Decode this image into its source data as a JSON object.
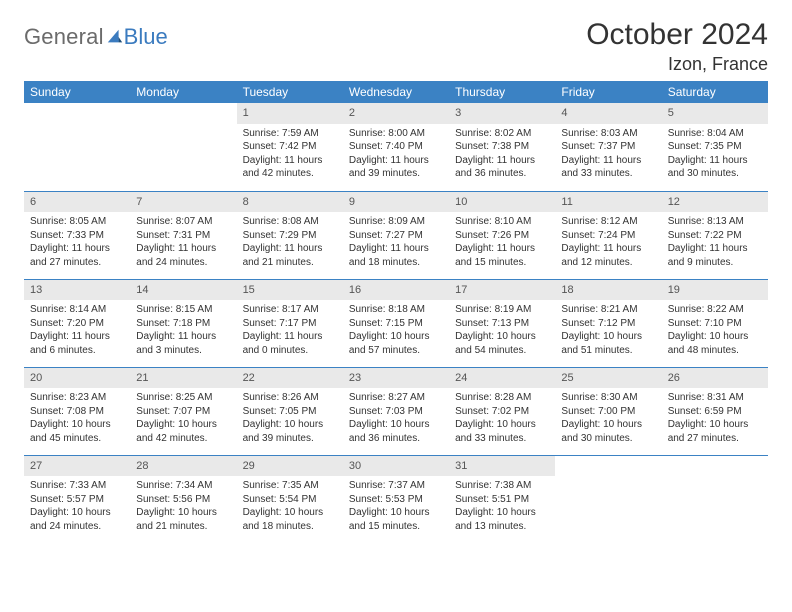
{
  "brand": {
    "word1": "General",
    "word2": "Blue"
  },
  "title": "October 2024",
  "location": "Izon, France",
  "colors": {
    "header_bg": "#3b82c4",
    "header_fg": "#ffffff",
    "daynum_bg": "#e9e9e9",
    "rule": "#3b82c4",
    "logo_gray": "#6b6b6b",
    "logo_blue": "#3b7bbf"
  },
  "weekdays": [
    "Sunday",
    "Monday",
    "Tuesday",
    "Wednesday",
    "Thursday",
    "Friday",
    "Saturday"
  ],
  "weeks": [
    [
      {
        "n": "",
        "sunrise": "",
        "sunset": "",
        "daylight": "",
        "empty": true
      },
      {
        "n": "",
        "sunrise": "",
        "sunset": "",
        "daylight": "",
        "empty": true
      },
      {
        "n": "1",
        "sunrise": "Sunrise: 7:59 AM",
        "sunset": "Sunset: 7:42 PM",
        "daylight": "Daylight: 11 hours and 42 minutes."
      },
      {
        "n": "2",
        "sunrise": "Sunrise: 8:00 AM",
        "sunset": "Sunset: 7:40 PM",
        "daylight": "Daylight: 11 hours and 39 minutes."
      },
      {
        "n": "3",
        "sunrise": "Sunrise: 8:02 AM",
        "sunset": "Sunset: 7:38 PM",
        "daylight": "Daylight: 11 hours and 36 minutes."
      },
      {
        "n": "4",
        "sunrise": "Sunrise: 8:03 AM",
        "sunset": "Sunset: 7:37 PM",
        "daylight": "Daylight: 11 hours and 33 minutes."
      },
      {
        "n": "5",
        "sunrise": "Sunrise: 8:04 AM",
        "sunset": "Sunset: 7:35 PM",
        "daylight": "Daylight: 11 hours and 30 minutes."
      }
    ],
    [
      {
        "n": "6",
        "sunrise": "Sunrise: 8:05 AM",
        "sunset": "Sunset: 7:33 PM",
        "daylight": "Daylight: 11 hours and 27 minutes."
      },
      {
        "n": "7",
        "sunrise": "Sunrise: 8:07 AM",
        "sunset": "Sunset: 7:31 PM",
        "daylight": "Daylight: 11 hours and 24 minutes."
      },
      {
        "n": "8",
        "sunrise": "Sunrise: 8:08 AM",
        "sunset": "Sunset: 7:29 PM",
        "daylight": "Daylight: 11 hours and 21 minutes."
      },
      {
        "n": "9",
        "sunrise": "Sunrise: 8:09 AM",
        "sunset": "Sunset: 7:27 PM",
        "daylight": "Daylight: 11 hours and 18 minutes."
      },
      {
        "n": "10",
        "sunrise": "Sunrise: 8:10 AM",
        "sunset": "Sunset: 7:26 PM",
        "daylight": "Daylight: 11 hours and 15 minutes."
      },
      {
        "n": "11",
        "sunrise": "Sunrise: 8:12 AM",
        "sunset": "Sunset: 7:24 PM",
        "daylight": "Daylight: 11 hours and 12 minutes."
      },
      {
        "n": "12",
        "sunrise": "Sunrise: 8:13 AM",
        "sunset": "Sunset: 7:22 PM",
        "daylight": "Daylight: 11 hours and 9 minutes."
      }
    ],
    [
      {
        "n": "13",
        "sunrise": "Sunrise: 8:14 AM",
        "sunset": "Sunset: 7:20 PM",
        "daylight": "Daylight: 11 hours and 6 minutes."
      },
      {
        "n": "14",
        "sunrise": "Sunrise: 8:15 AM",
        "sunset": "Sunset: 7:18 PM",
        "daylight": "Daylight: 11 hours and 3 minutes."
      },
      {
        "n": "15",
        "sunrise": "Sunrise: 8:17 AM",
        "sunset": "Sunset: 7:17 PM",
        "daylight": "Daylight: 11 hours and 0 minutes."
      },
      {
        "n": "16",
        "sunrise": "Sunrise: 8:18 AM",
        "sunset": "Sunset: 7:15 PM",
        "daylight": "Daylight: 10 hours and 57 minutes."
      },
      {
        "n": "17",
        "sunrise": "Sunrise: 8:19 AM",
        "sunset": "Sunset: 7:13 PM",
        "daylight": "Daylight: 10 hours and 54 minutes."
      },
      {
        "n": "18",
        "sunrise": "Sunrise: 8:21 AM",
        "sunset": "Sunset: 7:12 PM",
        "daylight": "Daylight: 10 hours and 51 minutes."
      },
      {
        "n": "19",
        "sunrise": "Sunrise: 8:22 AM",
        "sunset": "Sunset: 7:10 PM",
        "daylight": "Daylight: 10 hours and 48 minutes."
      }
    ],
    [
      {
        "n": "20",
        "sunrise": "Sunrise: 8:23 AM",
        "sunset": "Sunset: 7:08 PM",
        "daylight": "Daylight: 10 hours and 45 minutes."
      },
      {
        "n": "21",
        "sunrise": "Sunrise: 8:25 AM",
        "sunset": "Sunset: 7:07 PM",
        "daylight": "Daylight: 10 hours and 42 minutes."
      },
      {
        "n": "22",
        "sunrise": "Sunrise: 8:26 AM",
        "sunset": "Sunset: 7:05 PM",
        "daylight": "Daylight: 10 hours and 39 minutes."
      },
      {
        "n": "23",
        "sunrise": "Sunrise: 8:27 AM",
        "sunset": "Sunset: 7:03 PM",
        "daylight": "Daylight: 10 hours and 36 minutes."
      },
      {
        "n": "24",
        "sunrise": "Sunrise: 8:28 AM",
        "sunset": "Sunset: 7:02 PM",
        "daylight": "Daylight: 10 hours and 33 minutes."
      },
      {
        "n": "25",
        "sunrise": "Sunrise: 8:30 AM",
        "sunset": "Sunset: 7:00 PM",
        "daylight": "Daylight: 10 hours and 30 minutes."
      },
      {
        "n": "26",
        "sunrise": "Sunrise: 8:31 AM",
        "sunset": "Sunset: 6:59 PM",
        "daylight": "Daylight: 10 hours and 27 minutes."
      }
    ],
    [
      {
        "n": "27",
        "sunrise": "Sunrise: 7:33 AM",
        "sunset": "Sunset: 5:57 PM",
        "daylight": "Daylight: 10 hours and 24 minutes."
      },
      {
        "n": "28",
        "sunrise": "Sunrise: 7:34 AM",
        "sunset": "Sunset: 5:56 PM",
        "daylight": "Daylight: 10 hours and 21 minutes."
      },
      {
        "n": "29",
        "sunrise": "Sunrise: 7:35 AM",
        "sunset": "Sunset: 5:54 PM",
        "daylight": "Daylight: 10 hours and 18 minutes."
      },
      {
        "n": "30",
        "sunrise": "Sunrise: 7:37 AM",
        "sunset": "Sunset: 5:53 PM",
        "daylight": "Daylight: 10 hours and 15 minutes."
      },
      {
        "n": "31",
        "sunrise": "Sunrise: 7:38 AM",
        "sunset": "Sunset: 5:51 PM",
        "daylight": "Daylight: 10 hours and 13 minutes."
      },
      {
        "n": "",
        "sunrise": "",
        "sunset": "",
        "daylight": "",
        "empty": true
      },
      {
        "n": "",
        "sunrise": "",
        "sunset": "",
        "daylight": "",
        "empty": true
      }
    ]
  ]
}
